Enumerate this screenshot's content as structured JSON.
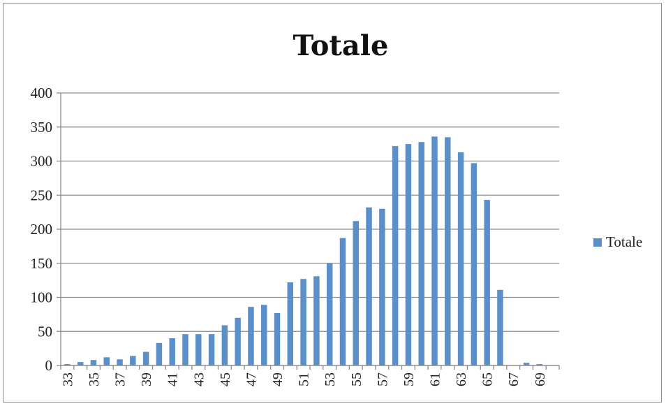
{
  "chart_data": {
    "type": "bar",
    "title": "Totale",
    "xlabel": "",
    "ylabel": "",
    "ylim": [
      0,
      400
    ],
    "yticks": [
      0,
      50,
      100,
      150,
      200,
      250,
      300,
      350,
      400
    ],
    "grid": true,
    "legend_position": "right",
    "color": "#5b8fc9",
    "categories": [
      33,
      34,
      35,
      36,
      37,
      38,
      39,
      40,
      41,
      42,
      43,
      44,
      45,
      46,
      47,
      48,
      49,
      50,
      51,
      52,
      53,
      54,
      55,
      56,
      57,
      58,
      59,
      60,
      61,
      62,
      63,
      64,
      65,
      66,
      67,
      68,
      69,
      70
    ],
    "xtick_labels": [
      "33",
      "35",
      "37",
      "39",
      "41",
      "43",
      "45",
      "47",
      "49",
      "51",
      "53",
      "55",
      "57",
      "59",
      "61",
      "63",
      "65",
      "67",
      "69"
    ],
    "series": [
      {
        "name": "Totale",
        "values": [
          2,
          5,
          8,
          12,
          9,
          14,
          20,
          33,
          40,
          46,
          46,
          46,
          59,
          70,
          86,
          89,
          77,
          122,
          127,
          131,
          150,
          187,
          212,
          232,
          230,
          322,
          325,
          328,
          336,
          335,
          313,
          297,
          243,
          111,
          0,
          4,
          2,
          0
        ]
      }
    ]
  }
}
